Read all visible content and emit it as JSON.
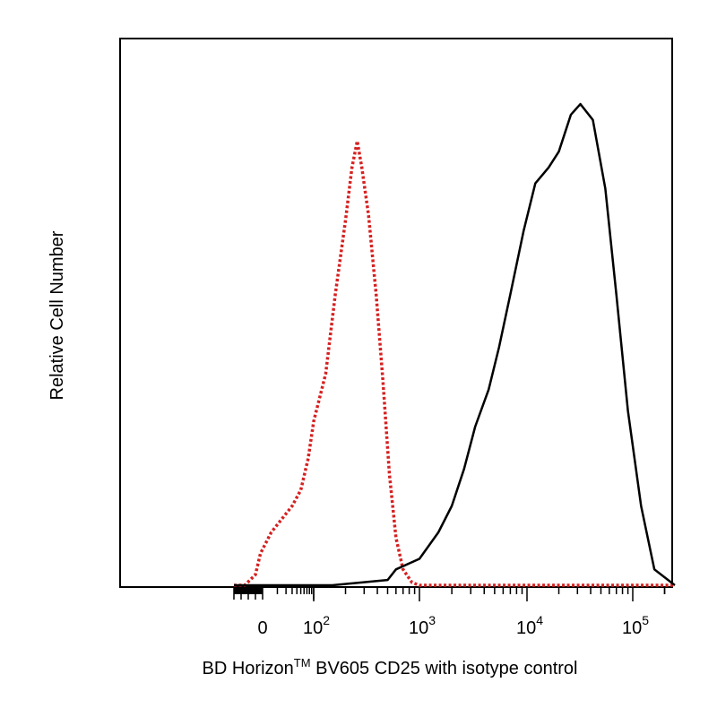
{
  "chart_data": {
    "type": "line",
    "title": "",
    "xlabel": "BD Horizon™ BV605 CD25 with isotype control",
    "xlabel_parts": {
      "main": "BD Horizon",
      "super": "TM",
      "rest": " BV605 CD25 with isotype control"
    },
    "ylabel": "Relative Cell Number",
    "x_scale": "biexponential (logicle)",
    "xlim": [
      -400,
      250000
    ],
    "ylim": [
      0,
      100
    ],
    "x_tick_labels": [
      {
        "value": 0,
        "label": "0"
      },
      {
        "value": 100,
        "base": "10",
        "exp": "2"
      },
      {
        "value": 1000,
        "base": "10",
        "exp": "3"
      },
      {
        "value": 10000,
        "base": "10",
        "exp": "4"
      },
      {
        "value": 100000,
        "base": "10",
        "exp": "5"
      }
    ],
    "grid": false,
    "legend": "none",
    "series": [
      {
        "color": "#d62020",
        "style": "dotted",
        "points": [
          [
            -400,
            0
          ],
          [
            -250,
            0
          ],
          [
            -100,
            2
          ],
          [
            -30,
            6
          ],
          [
            5,
            10
          ],
          [
            30,
            15
          ],
          [
            50,
            18
          ],
          [
            75,
            24
          ],
          [
            100,
            31
          ],
          [
            130,
            40
          ],
          [
            160,
            55
          ],
          [
            200,
            69
          ],
          [
            230,
            79
          ],
          [
            258,
            84
          ],
          [
            285,
            79
          ],
          [
            330,
            70
          ],
          [
            390,
            55
          ],
          [
            450,
            39
          ],
          [
            520,
            21
          ],
          [
            600,
            9
          ],
          [
            700,
            3
          ],
          [
            850,
            0.5
          ],
          [
            1000,
            0
          ],
          [
            3000,
            0
          ],
          [
            100000,
            0
          ],
          [
            250000,
            0
          ]
        ]
      },
      {
        "color": "#000000",
        "style": "solid",
        "points": [
          [
            -400,
            0
          ],
          [
            150,
            0
          ],
          [
            500,
            1
          ],
          [
            600,
            3
          ],
          [
            1000,
            5
          ],
          [
            1500,
            10
          ],
          [
            2000,
            15
          ],
          [
            2600,
            22
          ],
          [
            3300,
            30
          ],
          [
            4400,
            37
          ],
          [
            5500,
            45
          ],
          [
            7000,
            55
          ],
          [
            9300,
            67
          ],
          [
            12000,
            76
          ],
          [
            16000,
            79
          ],
          [
            20000,
            82
          ],
          [
            26000,
            89
          ],
          [
            32000,
            91
          ],
          [
            42000,
            88
          ],
          [
            55000,
            75
          ],
          [
            70000,
            55
          ],
          [
            90000,
            33
          ],
          [
            120000,
            15
          ],
          [
            160000,
            3
          ],
          [
            250000,
            0
          ]
        ]
      }
    ]
  }
}
